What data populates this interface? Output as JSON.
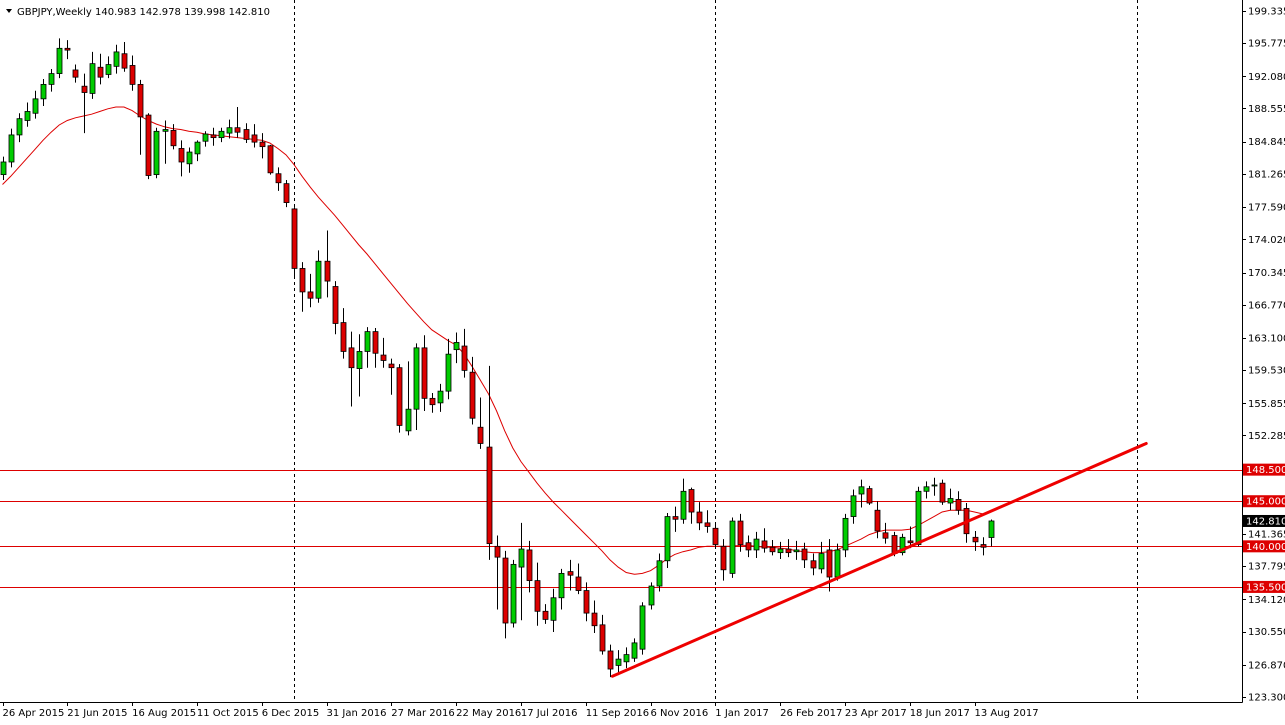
{
  "header": {
    "symbol_timeframe": "GBPJPY,Weekly",
    "ohlc": "140.983 142.978 139.998 142.810"
  },
  "colors": {
    "bull_body": "#00cc00",
    "bear_body": "#dd0000",
    "wick": "#000000",
    "ma_line": "#dd0000",
    "level_line": "#dd0000",
    "trendline": "#ee0000",
    "grid_vertical": "#000000",
    "current_price_bg": "#000000"
  },
  "chart_data": {
    "type": "candlestick",
    "timeframe": "Weekly",
    "ylim": [
      123.3,
      200
    ],
    "y_ticks": [
      "199.335",
      "195.775",
      "192.080",
      "188.555",
      "184.845",
      "181.265",
      "177.590",
      "174.020",
      "170.345",
      "166.770",
      "163.100",
      "159.530",
      "155.855",
      "152.285",
      "148.500",
      "145.000",
      "141.365",
      "140.000",
      "137.795",
      "135.500",
      "134.120",
      "130.550",
      "126.870",
      "123.300"
    ],
    "x_ticks": [
      {
        "label": "26 Apr 2015",
        "i": 0
      },
      {
        "label": "21 Jun 2015",
        "i": 8
      },
      {
        "label": "16 Aug 2015",
        "i": 16
      },
      {
        "label": "11 Oct 2015",
        "i": 24
      },
      {
        "label": "6 Dec 2015",
        "i": 32
      },
      {
        "label": "31 Jan 2016",
        "i": 40
      },
      {
        "label": "27 Mar 2016",
        "i": 48
      },
      {
        "label": "22 May 2016",
        "i": 56
      },
      {
        "label": "17 Jul 2016",
        "i": 64
      },
      {
        "label": "11 Sep 2016",
        "i": 72
      },
      {
        "label": "6 Nov 2016",
        "i": 80
      },
      {
        "label": "1 Jan 2017",
        "i": 88
      },
      {
        "label": "26 Feb 2017",
        "i": 96
      },
      {
        "label": "23 Apr 2017",
        "i": 104
      },
      {
        "label": "18 Jun 2017",
        "i": 112
      },
      {
        "label": "13 Aug 2017",
        "i": 120
      }
    ],
    "period_separators": [
      36,
      88,
      140
    ],
    "candles": [
      [
        181.2,
        183.2,
        180.6,
        182.6
      ],
      [
        182.6,
        186.3,
        182.0,
        185.6
      ],
      [
        185.6,
        188.0,
        184.8,
        187.4
      ],
      [
        187.2,
        189.2,
        186.5,
        188.2
      ],
      [
        188.0,
        190.5,
        187.4,
        189.6
      ],
      [
        189.6,
        191.8,
        188.8,
        191.2
      ],
      [
        191.2,
        192.9,
        190.4,
        192.4
      ],
      [
        192.4,
        196.3,
        191.9,
        195.2
      ],
      [
        195.2,
        196.1,
        194.0,
        195.0
      ],
      [
        192.8,
        193.4,
        191.4,
        192.0
      ],
      [
        191.0,
        192.4,
        185.8,
        190.3
      ],
      [
        190.2,
        194.8,
        189.6,
        193.5
      ],
      [
        193.1,
        194.6,
        191.2,
        192.0
      ],
      [
        192.3,
        194.3,
        191.9,
        193.4
      ],
      [
        193.2,
        195.6,
        192.4,
        194.8
      ],
      [
        194.6,
        195.9,
        192.6,
        193.0
      ],
      [
        193.3,
        194.4,
        190.5,
        191.2
      ],
      [
        191.2,
        191.7,
        183.4,
        187.6
      ],
      [
        187.8,
        188.0,
        180.7,
        181.1
      ],
      [
        181.2,
        186.4,
        180.8,
        186.0
      ],
      [
        186.0,
        187.2,
        182.4,
        186.2
      ],
      [
        186.1,
        186.8,
        184.0,
        184.4
      ],
      [
        184.1,
        185.0,
        181.0,
        182.6
      ],
      [
        182.4,
        184.2,
        181.4,
        183.7
      ],
      [
        183.5,
        185.0,
        182.7,
        184.8
      ],
      [
        184.9,
        186.0,
        184.3,
        185.7
      ],
      [
        185.6,
        186.4,
        184.4,
        185.3
      ],
      [
        185.3,
        186.4,
        184.8,
        186.0
      ],
      [
        185.8,
        187.3,
        185.2,
        186.4
      ],
      [
        186.4,
        188.7,
        185.3,
        185.9
      ],
      [
        186.2,
        186.9,
        184.7,
        185.1
      ],
      [
        185.6,
        186.8,
        184.2,
        184.8
      ],
      [
        184.8,
        185.8,
        183.0,
        184.3
      ],
      [
        184.4,
        184.5,
        181.2,
        181.4
      ],
      [
        181.3,
        182.0,
        179.4,
        180.3
      ],
      [
        180.2,
        180.6,
        177.6,
        178.1
      ],
      [
        177.4,
        177.6,
        169.8,
        170.8
      ],
      [
        170.8,
        171.5,
        166.0,
        168.2
      ],
      [
        168.2,
        170.2,
        166.5,
        167.5
      ],
      [
        167.5,
        172.8,
        167.0,
        171.6
      ],
      [
        171.6,
        175.0,
        167.6,
        169.4
      ],
      [
        168.8,
        169.4,
        163.5,
        164.7
      ],
      [
        164.8,
        166.4,
        160.8,
        161.6
      ],
      [
        162.0,
        163.8,
        155.5,
        159.8
      ],
      [
        159.7,
        163.5,
        156.6,
        161.6
      ],
      [
        161.6,
        164.3,
        159.8,
        163.8
      ],
      [
        163.8,
        164.2,
        159.8,
        161.4
      ],
      [
        161.2,
        163.1,
        159.8,
        160.6
      ],
      [
        160.2,
        160.8,
        156.8,
        159.8
      ],
      [
        159.8,
        160.2,
        152.6,
        153.4
      ],
      [
        152.8,
        160.5,
        152.3,
        155.2
      ],
      [
        155.2,
        162.5,
        152.9,
        162.0
      ],
      [
        162.0,
        163.4,
        155.0,
        156.4
      ],
      [
        156.4,
        157.0,
        154.8,
        155.7
      ],
      [
        155.9,
        158.0,
        154.9,
        157.2
      ],
      [
        157.2,
        163.0,
        156.3,
        161.3
      ],
      [
        161.8,
        163.7,
        160.3,
        162.6
      ],
      [
        162.2,
        164.1,
        158.7,
        159.5
      ],
      [
        159.3,
        161.0,
        153.5,
        154.2
      ],
      [
        153.2,
        156.5,
        150.8,
        151.4
      ],
      [
        151.0,
        160.0,
        138.5,
        140.3
      ],
      [
        140.0,
        141.2,
        133.0,
        138.8
      ],
      [
        138.7,
        139.5,
        129.8,
        131.5
      ],
      [
        131.5,
        138.5,
        131.0,
        138.0
      ],
      [
        137.7,
        142.6,
        131.8,
        139.7
      ],
      [
        139.6,
        140.6,
        134.9,
        136.2
      ],
      [
        136.2,
        138.2,
        131.2,
        132.8
      ],
      [
        132.8,
        133.6,
        131.4,
        131.9
      ],
      [
        131.8,
        135.3,
        130.5,
        134.3
      ],
      [
        134.3,
        137.5,
        133.0,
        137.0
      ],
      [
        137.2,
        138.5,
        135.1,
        136.8
      ],
      [
        136.6,
        138.1,
        134.7,
        135.1
      ],
      [
        135.1,
        136.0,
        131.7,
        132.6
      ],
      [
        132.6,
        134.0,
        130.4,
        131.2
      ],
      [
        131.3,
        132.4,
        128.0,
        128.4
      ],
      [
        128.4,
        129.1,
        125.5,
        126.4
      ],
      [
        126.8,
        128.5,
        125.8,
        127.5
      ],
      [
        127.2,
        128.8,
        126.5,
        128.0
      ],
      [
        127.6,
        129.8,
        127.2,
        129.3
      ],
      [
        128.6,
        133.8,
        128.0,
        133.4
      ],
      [
        133.5,
        136.0,
        133.0,
        135.6
      ],
      [
        135.6,
        139.2,
        135.0,
        138.4
      ],
      [
        138.4,
        143.7,
        137.6,
        143.3
      ],
      [
        143.3,
        144.4,
        141.6,
        143.0
      ],
      [
        143.0,
        147.5,
        142.5,
        146.1
      ],
      [
        146.3,
        146.5,
        142.5,
        143.8
      ],
      [
        143.8,
        144.9,
        141.8,
        142.6
      ],
      [
        142.6,
        144.0,
        141.5,
        142.2
      ],
      [
        142.0,
        142.5,
        139.7,
        140.2
      ],
      [
        140.0,
        140.8,
        136.2,
        137.4
      ],
      [
        137.0,
        143.2,
        136.5,
        142.8
      ],
      [
        142.8,
        143.6,
        139.4,
        140.2
      ],
      [
        140.4,
        141.2,
        138.8,
        139.6
      ],
      [
        139.6,
        141.6,
        138.7,
        140.8
      ],
      [
        140.6,
        142.0,
        139.3,
        139.8
      ],
      [
        139.9,
        140.7,
        139.0,
        139.4
      ],
      [
        139.3,
        140.5,
        138.6,
        139.7
      ],
      [
        139.7,
        140.8,
        138.8,
        139.3
      ],
      [
        139.4,
        140.6,
        138.5,
        139.6
      ],
      [
        139.7,
        140.4,
        137.6,
        138.5
      ],
      [
        138.4,
        139.2,
        136.8,
        137.6
      ],
      [
        137.5,
        140.5,
        137.0,
        139.2
      ],
      [
        139.6,
        140.8,
        135.0,
        136.6
      ],
      [
        136.6,
        140.3,
        136.2,
        139.6
      ],
      [
        139.6,
        143.6,
        138.8,
        143.1
      ],
      [
        143.3,
        146.3,
        142.5,
        145.6
      ],
      [
        145.8,
        147.4,
        144.3,
        146.6
      ],
      [
        146.4,
        146.7,
        144.6,
        144.8
      ],
      [
        144.0,
        145.0,
        140.9,
        141.7
      ],
      [
        141.5,
        142.6,
        140.3,
        140.9
      ],
      [
        141.2,
        141.6,
        138.9,
        139.2
      ],
      [
        139.3,
        141.4,
        139.0,
        141.0
      ],
      [
        140.6,
        142.2,
        139.8,
        140.4
      ],
      [
        140.2,
        146.6,
        140.0,
        146.1
      ],
      [
        146.1,
        147.2,
        145.3,
        146.6
      ],
      [
        146.8,
        147.6,
        145.6,
        146.8
      ],
      [
        147.0,
        147.4,
        144.6,
        144.9
      ],
      [
        144.8,
        146.4,
        144.0,
        145.3
      ],
      [
        145.2,
        146.1,
        143.5,
        144.0
      ],
      [
        144.2,
        144.8,
        140.4,
        141.4
      ],
      [
        141.0,
        141.7,
        139.5,
        140.5
      ],
      [
        140.2,
        141.0,
        139.0,
        139.9
      ],
      [
        140.98,
        142.98,
        140.0,
        142.81
      ]
    ],
    "moving_average": {
      "name": "",
      "start_index": 0,
      "values": [
        180.1,
        181.0,
        182.0,
        183.0,
        184.0,
        185.0,
        185.9,
        186.7,
        187.2,
        187.5,
        187.7,
        187.9,
        188.2,
        188.5,
        188.7,
        188.7,
        188.3,
        187.7,
        187.2,
        186.8,
        186.5,
        186.3,
        186.2,
        186.0,
        185.9,
        185.7,
        185.6,
        185.5,
        185.4,
        185.3,
        185.2,
        185.1,
        185.0,
        184.7,
        184.1,
        183.4,
        182.3,
        181.0,
        179.8,
        178.7,
        177.7,
        176.7,
        175.6,
        174.5,
        173.4,
        172.4,
        171.3,
        170.2,
        169.1,
        168.0,
        166.9,
        165.9,
        164.9,
        164.0,
        163.4,
        162.8,
        162.3,
        161.3,
        159.9,
        158.4,
        156.9,
        155.0,
        152.8,
        150.9,
        149.4,
        148.2,
        147.0,
        145.9,
        144.9,
        144.0,
        143.1,
        142.2,
        141.3,
        140.4,
        139.5,
        138.5,
        137.7,
        137.1,
        136.9,
        137.0,
        137.3,
        137.9,
        138.6,
        139.1,
        139.4,
        139.6,
        139.9,
        140.0,
        140.0,
        140.0,
        140.0,
        140.1,
        140.1,
        140.0,
        139.9,
        139.9,
        139.8,
        139.7,
        139.5,
        139.4,
        139.3,
        139.3,
        139.4,
        139.6,
        140.0,
        140.4,
        140.8,
        141.3,
        141.6,
        141.8,
        141.8,
        141.8,
        141.9,
        142.3,
        142.8,
        143.3,
        143.8,
        144.0,
        144.0,
        144.0,
        143.8,
        143.6
      ]
    },
    "horizontal_levels": [
      {
        "value": 148.5,
        "label": "148.500"
      },
      {
        "value": 145.0,
        "label": "145.000"
      },
      {
        "value": 140.0,
        "label": "140.000"
      },
      {
        "value": 135.5,
        "label": "135.500"
      }
    ],
    "trendline": {
      "start": {
        "i": 75.3,
        "price": 125.6
      },
      "end": {
        "i": 141.2,
        "price": 151.4
      }
    },
    "current_price": {
      "value": 142.81,
      "label": "142.810"
    }
  }
}
